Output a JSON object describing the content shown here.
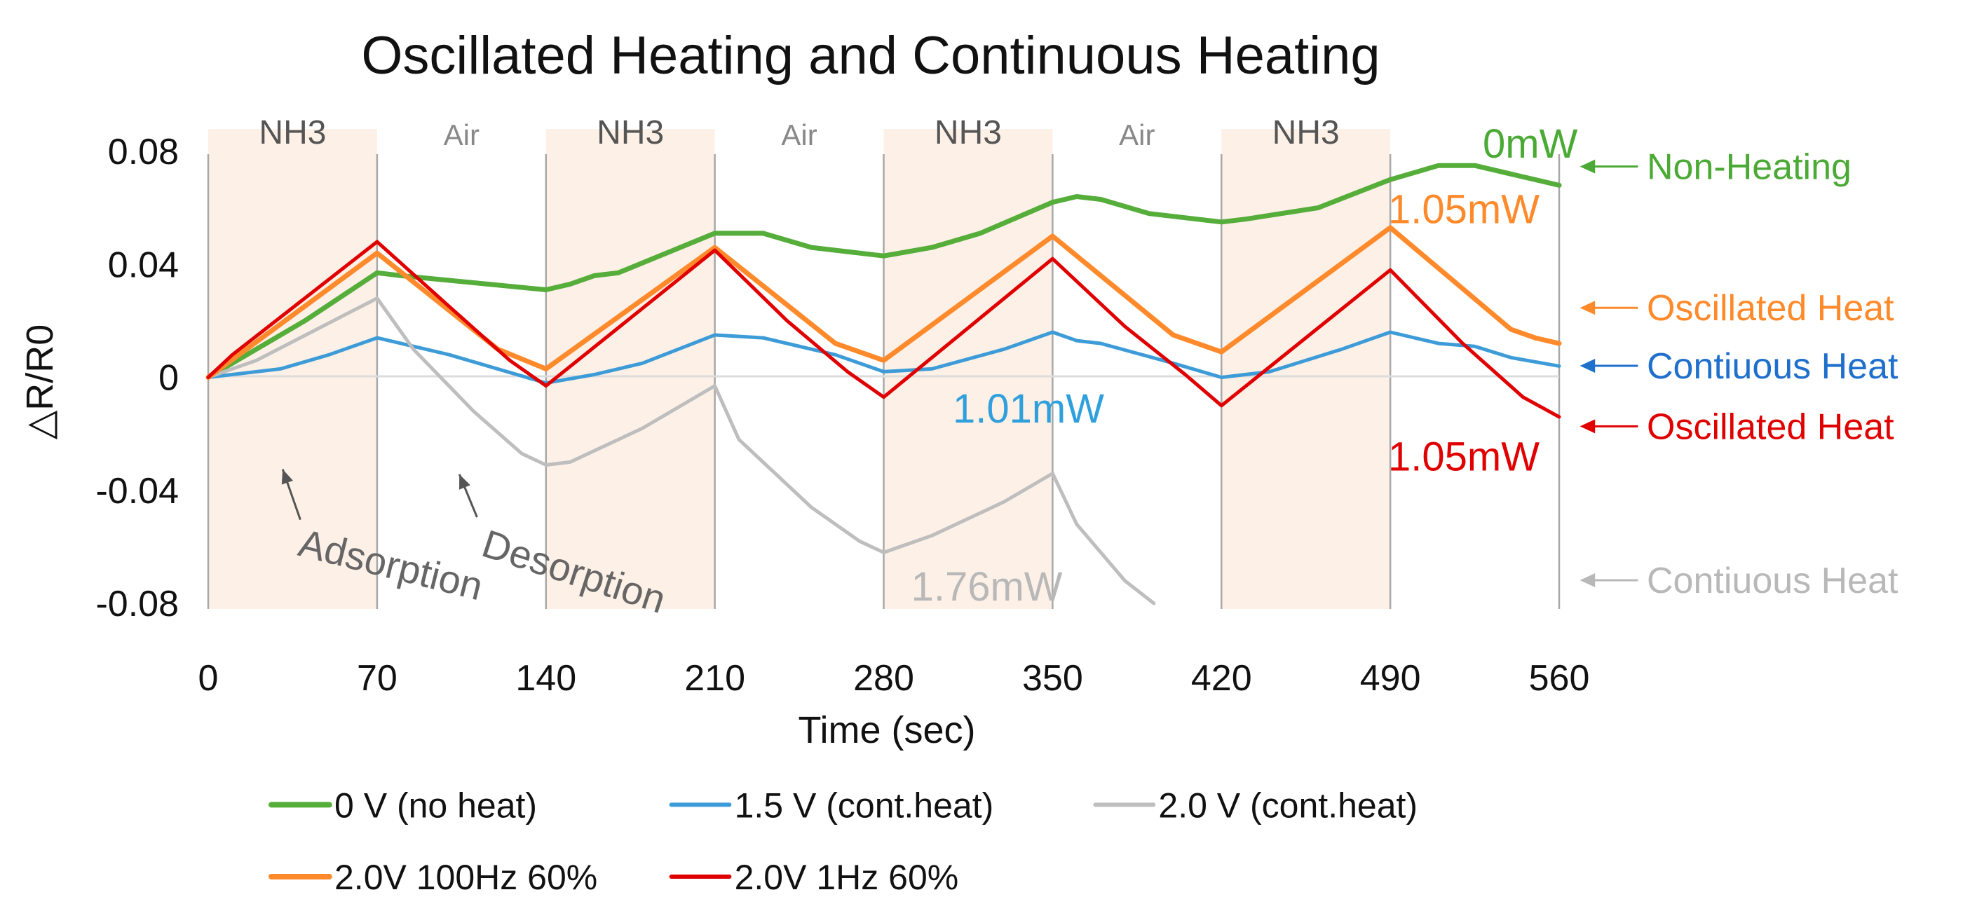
{
  "chart_data": {
    "type": "line",
    "title": "Oscillated Heating and Continuous Heating",
    "xlabel": "Time (sec)",
    "ylabel": "△R/R0",
    "xlim": [
      0,
      560
    ],
    "ylim": [
      -0.08,
      0.08
    ],
    "x_ticks": [
      0,
      70,
      140,
      210,
      280,
      350,
      420,
      490,
      560
    ],
    "y_ticks": [
      {
        "value": 0.08,
        "label": "0.08"
      },
      {
        "value": 0.04,
        "label": "0.04"
      },
      {
        "value": 0,
        "label": "0"
      },
      {
        "value": -0.04,
        "label": "-0.04"
      },
      {
        "value": -0.08,
        "label": "-0.08"
      }
    ],
    "grid": false,
    "legend_placement": "bottom",
    "periods": [
      {
        "start": 0,
        "end": 70,
        "label": "NH3",
        "shaded": true
      },
      {
        "start": 70,
        "end": 140,
        "label": "Air",
        "shaded": false
      },
      {
        "start": 140,
        "end": 210,
        "label": "NH3",
        "shaded": true
      },
      {
        "start": 210,
        "end": 280,
        "label": "Air",
        "shaded": false
      },
      {
        "start": 280,
        "end": 350,
        "label": "NH3",
        "shaded": true
      },
      {
        "start": 350,
        "end": 420,
        "label": "Air",
        "shaded": false
      },
      {
        "start": 420,
        "end": 490,
        "label": "NH3",
        "shaded": true
      }
    ],
    "series": [
      {
        "name": "0 V (no heat)",
        "color": "#55ad3a",
        "width": 7,
        "x": [
          0,
          10,
          40,
          70,
          80,
          140,
          150,
          160,
          170,
          210,
          230,
          250,
          280,
          300,
          320,
          350,
          360,
          370,
          390,
          420,
          430,
          460,
          490,
          510,
          525,
          540,
          560
        ],
        "y": [
          0,
          0.005,
          0.02,
          0.037,
          0.036,
          0.031,
          0.033,
          0.036,
          0.037,
          0.051,
          0.051,
          0.046,
          0.043,
          0.046,
          0.051,
          0.062,
          0.064,
          0.063,
          0.058,
          0.055,
          0.056,
          0.06,
          0.07,
          0.075,
          0.075,
          0.072,
          0.068
        ]
      },
      {
        "name": "1.5 V (cont.heat)",
        "color": "#3d9cd8",
        "width": 5,
        "x": [
          0,
          30,
          50,
          70,
          100,
          140,
          160,
          180,
          210,
          230,
          260,
          280,
          300,
          330,
          350,
          360,
          370,
          400,
          420,
          440,
          470,
          490,
          510,
          525,
          540,
          560
        ],
        "y": [
          0,
          0.003,
          0.008,
          0.014,
          0.008,
          -0.002,
          0.001,
          0.005,
          0.015,
          0.014,
          0.008,
          0.002,
          0.003,
          0.01,
          0.016,
          0.013,
          0.012,
          0.005,
          0,
          0.002,
          0.01,
          0.016,
          0.012,
          0.011,
          0.007,
          0.004
        ]
      },
      {
        "name": "2.0 V (cont.heat)",
        "color": "#bebebe",
        "width": 5,
        "x": [
          0,
          20,
          70,
          85,
          110,
          130,
          140,
          150,
          180,
          210,
          220,
          250,
          270,
          280,
          300,
          330,
          350,
          360,
          380,
          392
        ],
        "y": [
          0,
          0.006,
          0.028,
          0.01,
          -0.012,
          -0.027,
          -0.031,
          -0.03,
          -0.018,
          -0.003,
          -0.022,
          -0.046,
          -0.058,
          -0.062,
          -0.056,
          -0.044,
          -0.034,
          -0.052,
          -0.072,
          -0.08
        ]
      },
      {
        "name": "2.0V 100Hz 60%",
        "color": "#ff8a2b",
        "width": 7,
        "x": [
          0,
          70,
          120,
          140,
          210,
          260,
          280,
          350,
          400,
          420,
          490,
          540,
          550,
          560
        ],
        "y": [
          0,
          0.044,
          0.01,
          0.003,
          0.046,
          0.012,
          0.006,
          0.05,
          0.015,
          0.009,
          0.053,
          0.017,
          0.014,
          0.012
        ]
      },
      {
        "name": "2.0V 1Hz 60%",
        "color": "#e00000",
        "width": 5,
        "x": [
          0,
          10,
          70,
          100,
          125,
          140,
          210,
          240,
          265,
          280,
          350,
          380,
          405,
          420,
          490,
          520,
          545,
          560
        ],
        "y": [
          0,
          0.008,
          0.048,
          0.025,
          0.006,
          -0.003,
          0.045,
          0.02,
          0.002,
          -0.007,
          0.042,
          0.018,
          0.001,
          -0.01,
          0.038,
          0.012,
          -0.007,
          -0.014
        ]
      }
    ],
    "annotations": {
      "power_labels": [
        {
          "text": "0mW",
          "color": "#4aaa35"
        },
        {
          "text": "1.05mW",
          "color": "#ff8a2b"
        },
        {
          "text": "1.01mW",
          "color": "#2fa0dc"
        },
        {
          "text": "1.05mW",
          "color": "#e00000"
        },
        {
          "text": "1.76mW",
          "color": "#b8b8b8"
        }
      ],
      "right_labels": [
        {
          "text": "Non-Heating",
          "color": "#4aaa35"
        },
        {
          "text": "Oscillated Heat",
          "color": "#ff8a2b"
        },
        {
          "text": "Contiuous Heat",
          "color": "#1f6fcc"
        },
        {
          "text": "Oscillated Heat",
          "color": "#e00000"
        },
        {
          "text": "Contiuous Heat",
          "color": "#b8b8b8"
        }
      ],
      "process_labels": [
        "Adsorption",
        "Desorption"
      ]
    }
  }
}
